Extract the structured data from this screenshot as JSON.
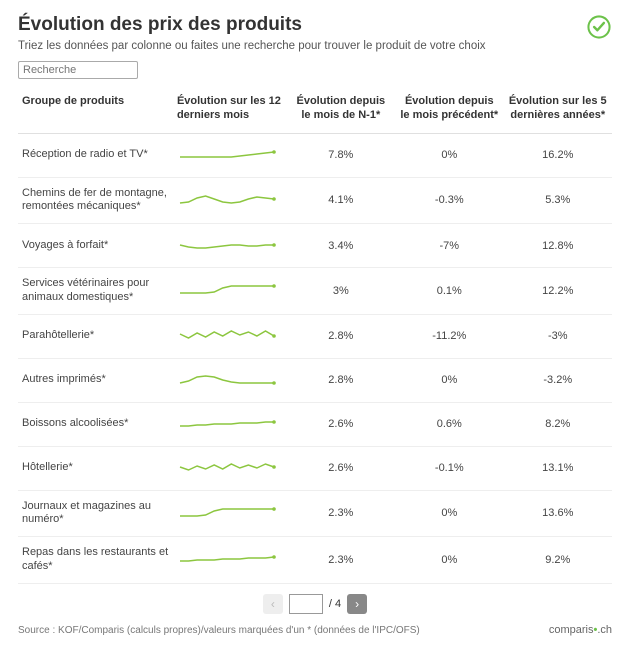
{
  "header": {
    "title": "Évolution des prix des produits",
    "subtitle": "Triez les données par colonne ou faites une recherche pour trouver le produit de votre choix"
  },
  "search": {
    "placeholder": "Recherche",
    "value": ""
  },
  "columns": {
    "c0": "Groupe de produits",
    "c1": "Évolution sur les 12 derniers mois",
    "c2": "Évolution depuis le mois de N-1*",
    "c3": "Évolution depuis le mois précédent*",
    "c4": "Évolution sur les 5 dernières années*"
  },
  "spark_style": {
    "stroke": "#8cc63f",
    "stroke_width": 1.5,
    "dot_fill": "#8cc63f",
    "dot_radius": 1.8,
    "width": 100,
    "height": 22
  },
  "rows": [
    {
      "name": "Réception de radio et TV*",
      "v1": "7.8%",
      "v2": "0%",
      "v3": "16.2%",
      "spark": [
        14,
        14,
        14,
        14,
        14,
        14,
        14,
        13,
        12,
        11,
        10,
        9
      ]
    },
    {
      "name": "Chemins de fer de montagne, remontées mécaniques*",
      "v1": "4.1%",
      "v2": "-0.3%",
      "v3": "5.3%",
      "spark": [
        15,
        14,
        10,
        8,
        11,
        14,
        15,
        14,
        11,
        9,
        10,
        11
      ]
    },
    {
      "name": "Voyages à forfait*",
      "v1": "3.4%",
      "v2": "-7%",
      "v3": "12.8%",
      "spark": [
        12,
        14,
        15,
        15,
        14,
        13,
        12,
        12,
        13,
        13,
        12,
        12
      ]
    },
    {
      "name": "Services vétérinaires pour animaux domestiques*",
      "v1": "3%",
      "v2": "0.1%",
      "v3": "12.2%",
      "spark": [
        15,
        15,
        15,
        15,
        14,
        10,
        8,
        8,
        8,
        8,
        8,
        8
      ]
    },
    {
      "name": "Parahôtellerie*",
      "v1": "2.8%",
      "v2": "-11.2%",
      "v3": "-3%",
      "spark": [
        10,
        14,
        9,
        13,
        8,
        12,
        7,
        11,
        8,
        12,
        7,
        12
      ]
    },
    {
      "name": "Autres imprimés*",
      "v1": "2.8%",
      "v2": "0%",
      "v3": "-3.2%",
      "spark": [
        15,
        13,
        9,
        8,
        9,
        12,
        14,
        15,
        15,
        15,
        15,
        15
      ]
    },
    {
      "name": "Boissons alcoolisées*",
      "v1": "2.6%",
      "v2": "0.6%",
      "v3": "8.2%",
      "spark": [
        14,
        14,
        13,
        13,
        12,
        12,
        12,
        11,
        11,
        11,
        10,
        10
      ]
    },
    {
      "name": "Hôtellerie*",
      "v1": "2.6%",
      "v2": "-0.1%",
      "v3": "13.1%",
      "spark": [
        11,
        14,
        10,
        13,
        9,
        13,
        8,
        12,
        9,
        12,
        8,
        11
      ]
    },
    {
      "name": "Journaux et magazines au numéro*",
      "v1": "2.3%",
      "v2": "0%",
      "v3": "13.6%",
      "spark": [
        15,
        15,
        15,
        14,
        10,
        8,
        8,
        8,
        8,
        8,
        8,
        8
      ]
    },
    {
      "name": "Repas dans les restaurants et cafés*",
      "v1": "2.3%",
      "v2": "0%",
      "v3": "9.2%",
      "spark": [
        14,
        14,
        13,
        13,
        13,
        12,
        12,
        12,
        11,
        11,
        11,
        10
      ]
    }
  ],
  "pagination": {
    "current": "",
    "total_label": "/ 4",
    "prev_glyph": "‹",
    "next_glyph": "›"
  },
  "footer": {
    "source": "Source : KOF/Comparis (calculs propres)/valeurs marquées d'un * (données de l'IPC/OFS)",
    "brand_a": "comparis",
    "brand_b": ".ch"
  },
  "colors": {
    "badge_stroke": "#6cc24a"
  }
}
